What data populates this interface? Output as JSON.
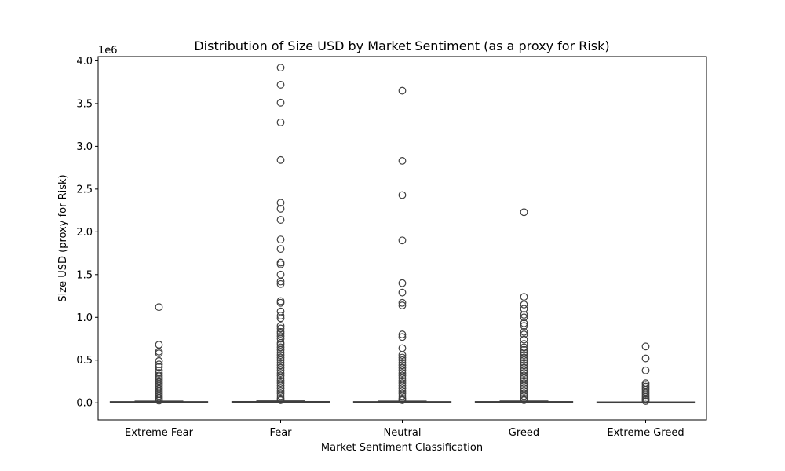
{
  "chart_data": {
    "type": "box",
    "title": "Distribution of Size USD by Market Sentiment (as a proxy for Risk)",
    "xlabel": "Market Sentiment Classification",
    "ylabel": "Size USD (proxy for Risk)",
    "y_offset_label": "1e6",
    "ylim": [
      -200000,
      4050000
    ],
    "y_ticks": [
      0,
      500000,
      1000000,
      1500000,
      2000000,
      2500000,
      3000000,
      3500000,
      4000000
    ],
    "y_tick_labels": [
      "0.0",
      "0.5",
      "1.0",
      "1.5",
      "2.0",
      "2.5",
      "3.0",
      "3.5",
      "4.0"
    ],
    "grid": false,
    "categories": [
      "Extreme Fear",
      "Fear",
      "Neutral",
      "Greed",
      "Extreme Greed"
    ],
    "boxes": [
      {
        "category": "Extreme Fear",
        "q1": 500,
        "median": 2000,
        "q3": 8000,
        "whisker_low": 0,
        "whisker_high": 20000,
        "outliers": [
          1120000,
          680000,
          600000,
          580000,
          490000,
          450000,
          420000,
          380000,
          350000,
          320000,
          300000,
          280000,
          260000,
          240000,
          220000,
          200000,
          180000,
          160000,
          140000,
          120000,
          100000,
          80000,
          60000,
          40000,
          25000
        ]
      },
      {
        "category": "Fear",
        "q1": 500,
        "median": 2000,
        "q3": 9000,
        "whisker_low": 0,
        "whisker_high": 22000,
        "outliers": [
          3920000,
          3720000,
          3510000,
          3280000,
          2840000,
          2340000,
          2270000,
          2140000,
          1910000,
          1800000,
          1640000,
          1620000,
          1500000,
          1420000,
          1390000,
          1190000,
          1170000,
          1070000,
          1020000,
          990000,
          900000,
          870000,
          830000,
          810000,
          780000,
          750000,
          700000,
          680000,
          650000,
          620000,
          590000,
          560000,
          530000,
          500000,
          470000,
          440000,
          410000,
          380000,
          350000,
          320000,
          290000,
          260000,
          230000,
          200000,
          170000,
          140000,
          110000,
          80000,
          50000,
          30000
        ]
      },
      {
        "category": "Neutral",
        "q1": 500,
        "median": 2000,
        "q3": 8000,
        "whisker_low": 0,
        "whisker_high": 20000,
        "outliers": [
          3650000,
          2830000,
          2430000,
          1900000,
          1400000,
          1290000,
          1170000,
          1140000,
          800000,
          770000,
          640000,
          560000,
          530000,
          500000,
          470000,
          440000,
          410000,
          380000,
          350000,
          320000,
          290000,
          260000,
          230000,
          200000,
          170000,
          140000,
          110000,
          80000,
          50000,
          30000
        ]
      },
      {
        "category": "Greed",
        "q1": 500,
        "median": 2000,
        "q3": 8500,
        "whisker_low": 0,
        "whisker_high": 21000,
        "outliers": [
          2230000,
          1240000,
          1150000,
          1100000,
          1030000,
          1000000,
          930000,
          900000,
          830000,
          800000,
          740000,
          690000,
          650000,
          620000,
          590000,
          560000,
          530000,
          500000,
          470000,
          440000,
          410000,
          380000,
          350000,
          320000,
          290000,
          260000,
          230000,
          200000,
          170000,
          140000,
          110000,
          80000,
          50000,
          30000
        ]
      },
      {
        "category": "Extreme Greed",
        "q1": 300,
        "median": 1000,
        "q3": 4000,
        "whisker_low": 0,
        "whisker_high": 10000,
        "outliers": [
          660000,
          520000,
          380000,
          230000,
          210000,
          190000,
          170000,
          150000,
          130000,
          110000,
          90000,
          70000,
          50000,
          35000,
          20000
        ]
      }
    ]
  }
}
